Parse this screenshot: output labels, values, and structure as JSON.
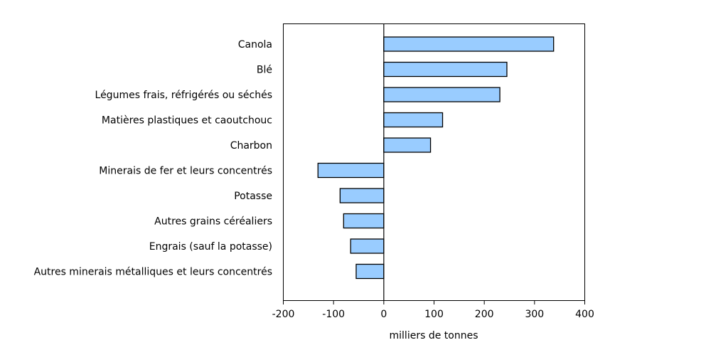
{
  "chart_data": {
    "type": "bar",
    "orientation": "horizontal",
    "title": "",
    "xlabel": "milliers de tonnes",
    "ylabel": "",
    "xlim": [
      -200,
      400
    ],
    "xticks": [
      -200,
      -100,
      0,
      100,
      200,
      300,
      400
    ],
    "grid": false,
    "categories": [
      "Canola",
      "Blé",
      "Légumes frais, réfrigérés ou séchés",
      "Matières plastiques et caoutchouc",
      "Charbon",
      "Minerais de fer et leurs concentrés",
      "Potasse",
      "Autres grains céréaliers",
      "Engrais (sauf la potasse)",
      "Autres minerais métalliques et leurs concentrés"
    ],
    "values": [
      338,
      245,
      231,
      117,
      93,
      -131,
      -87,
      -80,
      -66,
      -55
    ],
    "colors": {
      "bar": "#99ccff",
      "outline": "#000000"
    }
  }
}
